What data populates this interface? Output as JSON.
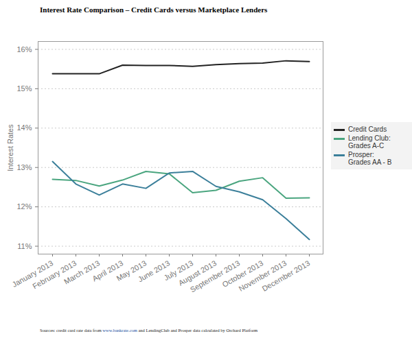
{
  "chart_data": {
    "type": "line",
    "title": "Interest Rate Comparison – Credit Cards versus Marketplace Lenders",
    "caption": "Sources: credit card rate data from www.bankrate.com and LendingClub and Prosper data calculated by Orchard Platform",
    "y_label": "Interest Rates",
    "categories": [
      "January 2013",
      "February 2013",
      "March 2013",
      "April 2013",
      "May 2013",
      "June 2013",
      "July 2013",
      "August 2013",
      "September 2013",
      "October 2013",
      "November 2013",
      "December 2013"
    ],
    "series": [
      {
        "name": "Credit Cards",
        "color": "#222222",
        "values": [
          15.38,
          15.38,
          15.38,
          15.6,
          15.59,
          15.59,
          15.57,
          15.61,
          15.64,
          15.65,
          15.71,
          15.69
        ]
      },
      {
        "name": "Lending Club: Grades A-C",
        "color": "#4aa57f",
        "values": [
          12.7,
          12.67,
          12.53,
          12.68,
          12.9,
          12.84,
          12.36,
          12.42,
          12.65,
          12.74,
          12.22,
          12.23
        ]
      },
      {
        "name": "Prosper: Grades AA - B",
        "color": "#3b7f9a",
        "values": [
          13.15,
          12.58,
          12.3,
          12.58,
          12.47,
          12.86,
          12.9,
          12.52,
          12.38,
          12.18,
          11.7,
          11.17
        ]
      }
    ],
    "ylim": [
      10.8,
      16.2
    ],
    "yticks": [
      {
        "value": 11,
        "label": "11%"
      },
      {
        "value": 12,
        "label": "12%"
      },
      {
        "value": 13,
        "label": "13%"
      },
      {
        "value": 14,
        "label": "14%"
      },
      {
        "value": 15,
        "label": "15%"
      },
      {
        "value": 16,
        "label": "16%"
      }
    ],
    "grid": true,
    "legend": "right"
  }
}
